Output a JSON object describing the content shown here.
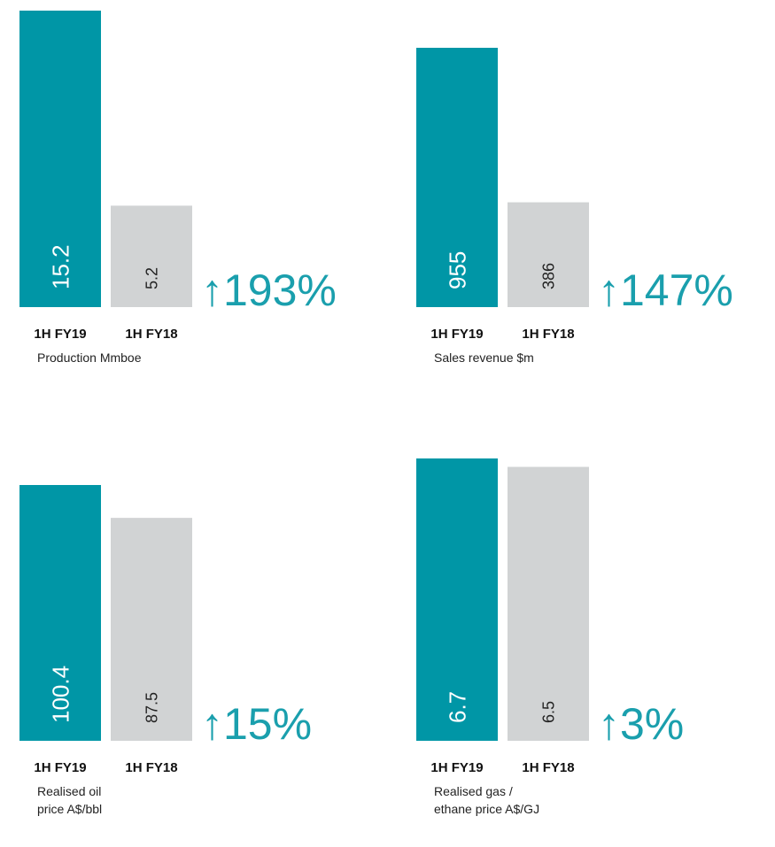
{
  "chart_data": [
    {
      "type": "bar",
      "categories": [
        "1H FY19",
        "1H FY18"
      ],
      "values": [
        15.2,
        5.2
      ],
      "colors": [
        "#0096a6",
        "#d1d3d4"
      ],
      "annotation": "↑193%",
      "title": [
        "Production Mmboe"
      ]
    },
    {
      "type": "bar",
      "categories": [
        "1H FY19",
        "1H FY18"
      ],
      "values": [
        955,
        386
      ],
      "colors": [
        "#0096a6",
        "#d1d3d4"
      ],
      "annotation": "↑147%",
      "title": [
        "Sales revenue $m"
      ]
    },
    {
      "type": "bar",
      "categories": [
        "1H FY19",
        "1H FY18"
      ],
      "values": [
        100.4,
        87.5
      ],
      "colors": [
        "#0096a6",
        "#d1d3d4"
      ],
      "annotation": "↑15%",
      "title": [
        "Realised oil",
        "price A$/bbl"
      ]
    },
    {
      "type": "bar",
      "categories": [
        "1H FY19",
        "1H FY18"
      ],
      "values": [
        6.7,
        6.5
      ],
      "colors": [
        "#0096a6",
        "#d1d3d4"
      ],
      "annotation": "↑3%",
      "title": [
        "Realised gas /",
        "ethane price A$/GJ"
      ]
    }
  ]
}
